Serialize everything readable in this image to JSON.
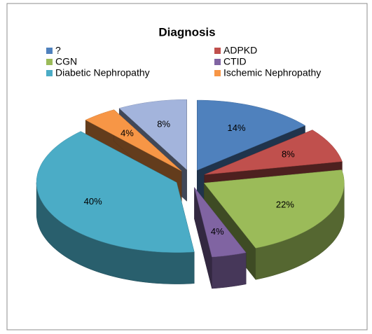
{
  "chart_data": {
    "type": "pie",
    "title": "Diagnosis",
    "categories": [
      "?",
      "ADPKD",
      "CGN",
      "CTID",
      "Diabetic Nephropathy",
      "Ischemic Nephropathy",
      null
    ],
    "values": [
      14,
      8,
      22,
      4,
      40,
      4,
      8
    ],
    "value_labels": [
      "14%",
      "8%",
      "22%",
      "4%",
      "40%",
      "4%",
      "8%"
    ],
    "colors": [
      "#4f81bd",
      "#c0504d",
      "#9bbb59",
      "#8064a2",
      "#4bacc6",
      "#f79646",
      "#a3b4dc"
    ],
    "legend": "top"
  }
}
